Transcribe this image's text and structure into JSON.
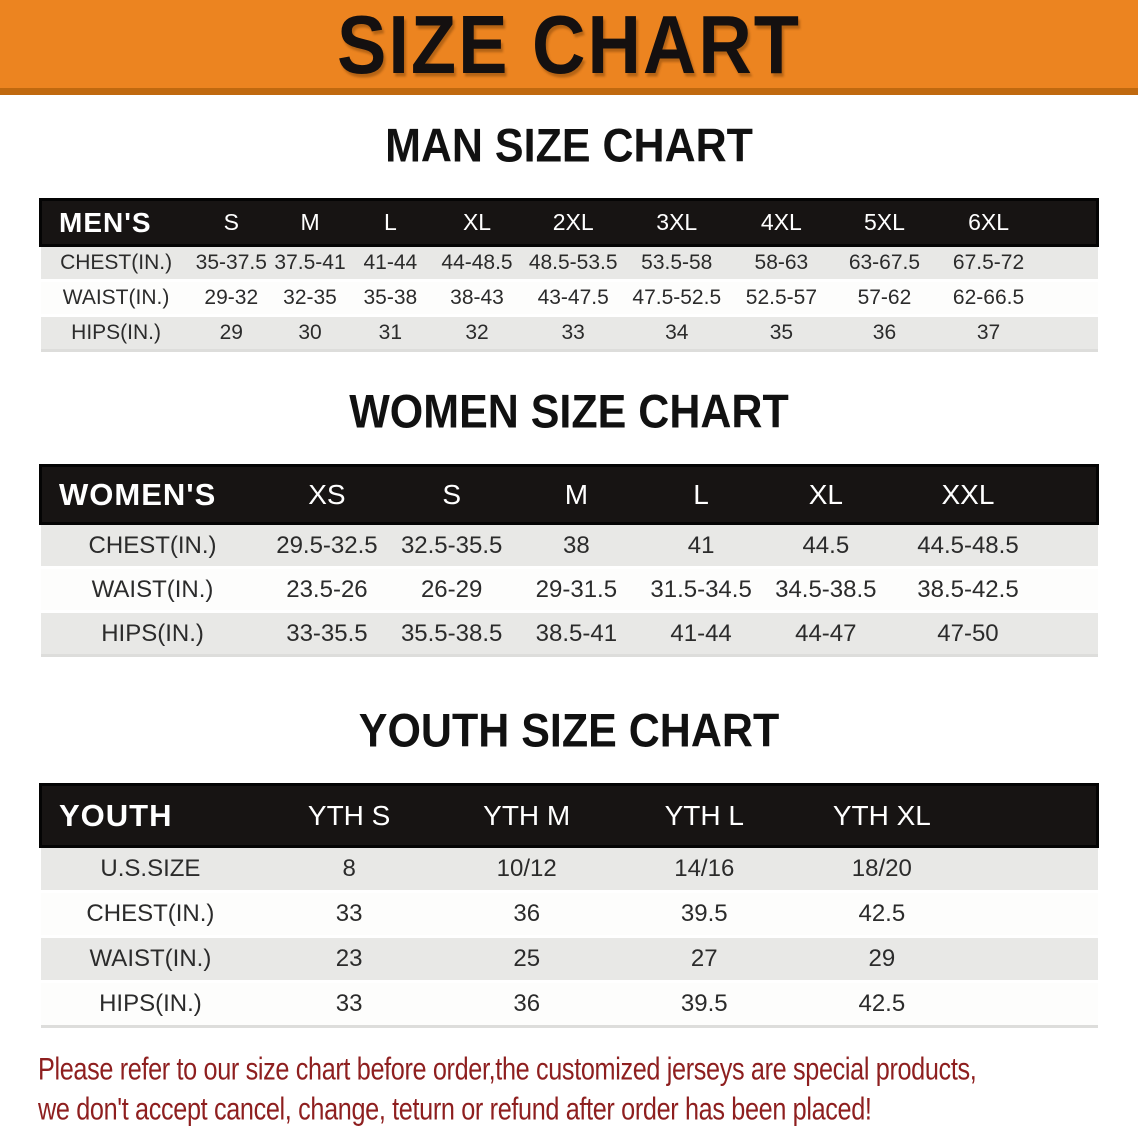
{
  "banner": {
    "title": "SIZE CHART",
    "background_color": "#EC8420",
    "border_color": "#C0690F",
    "text_color": "#141010"
  },
  "sections": [
    {
      "title": "MAN SIZE CHART",
      "header_label": "MEN'S",
      "columns": [
        "S",
        "M",
        "L",
        "XL",
        "2XL",
        "3XL",
        "4XL",
        "5XL",
        "6XL"
      ],
      "rows": [
        {
          "label": "CHEST(IN.)",
          "values": [
            "35-37.5",
            "37.5-41",
            "41-44",
            "44-48.5",
            "48.5-53.5",
            "53.5-58",
            "58-63",
            "63-67.5",
            "67.5-72"
          ]
        },
        {
          "label": "WAIST(IN.)",
          "values": [
            "29-32",
            "32-35",
            "35-38",
            "38-43",
            "43-47.5",
            "47.5-52.5",
            "52.5-57",
            "57-62",
            "62-66.5"
          ]
        },
        {
          "label": "HIPS(IN.)",
          "values": [
            "29",
            "30",
            "31",
            "32",
            "33",
            "34",
            "35",
            "36",
            "37"
          ]
        }
      ]
    },
    {
      "title": "WOMEN SIZE CHART",
      "header_label": "WOMEN'S",
      "columns": [
        "XS",
        "S",
        "M",
        "L",
        "XL",
        "XXL"
      ],
      "rows": [
        {
          "label": "CHEST(IN.)",
          "values": [
            "29.5-32.5",
            "32.5-35.5",
            "38",
            "41",
            "44.5",
            "44.5-48.5"
          ]
        },
        {
          "label": "WAIST(IN.)",
          "values": [
            "23.5-26",
            "26-29",
            "29-31.5",
            "31.5-34.5",
            "34.5-38.5",
            "38.5-42.5"
          ]
        },
        {
          "label": "HIPS(IN.)",
          "values": [
            "33-35.5",
            "35.5-38.5",
            "38.5-41",
            "41-44",
            "44-47",
            "47-50"
          ]
        }
      ]
    },
    {
      "title": "YOUTH SIZE CHART",
      "header_label": "YOUTH",
      "columns": [
        "YTH S",
        "YTH M",
        "YTH L",
        "YTH XL"
      ],
      "rows": [
        {
          "label": "U.S.SIZE",
          "values": [
            "8",
            "10/12",
            "14/16",
            "18/20"
          ]
        },
        {
          "label": "CHEST(IN.)",
          "values": [
            "33",
            "36",
            "39.5",
            "42.5"
          ]
        },
        {
          "label": "WAIST(IN.)",
          "values": [
            "23",
            "25",
            "27",
            "29"
          ]
        },
        {
          "label": "HIPS(IN.)",
          "values": [
            "33",
            "36",
            "39.5",
            "42.5"
          ]
        }
      ]
    }
  ],
  "table_style": {
    "header_background": "#171413",
    "header_text_color": "#ffffff",
    "stripe_color": "#E8E8E6"
  },
  "footer": {
    "line1": "Please refer to our size chart before order,the customized jerseys are special products,",
    "line2": "we don't accept cancel, change, teturn or refund after order has been placed!",
    "text_color": "#8E1F1F"
  }
}
